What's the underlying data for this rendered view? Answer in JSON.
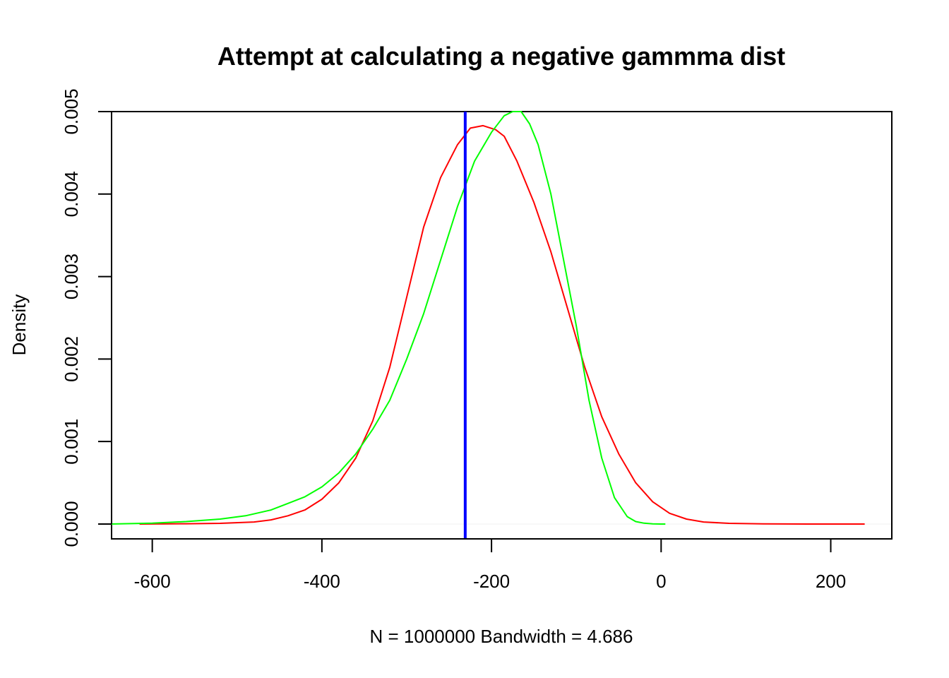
{
  "chart_data": {
    "type": "line",
    "title": "Attempt at calculating a negative gammma dist",
    "xlabel": "N = 1000000   Bandwidth = 4.686",
    "ylabel": "Density",
    "xlim": [
      -648,
      272
    ],
    "ylim": [
      -0.00018,
      0.005
    ],
    "x_ticks": [
      -600,
      -400,
      -200,
      0,
      200
    ],
    "x_tick_labels": [
      "-600",
      "-400",
      "-200",
      "0",
      "200"
    ],
    "y_ticks": [
      0,
      0.001,
      0.002,
      0.003,
      0.004,
      0.005
    ],
    "y_tick_labels": [
      "0.000",
      "0.001",
      "0.002",
      "0.003",
      "0.004",
      "0.005"
    ],
    "grid": false,
    "legend": "none",
    "vline": {
      "x": -231,
      "color": "#0000ff"
    },
    "series": [
      {
        "color": "#ff0000",
        "x": [
          -615,
          -560,
          -520,
          -480,
          -460,
          -440,
          -420,
          -400,
          -380,
          -360,
          -340,
          -320,
          -300,
          -280,
          -260,
          -240,
          -225,
          -210,
          -195,
          -185,
          -170,
          -150,
          -130,
          -110,
          -90,
          -70,
          -50,
          -30,
          -10,
          10,
          30,
          50,
          80,
          120,
          180,
          240
        ],
        "y": [
          0,
          3e-06,
          8e-06,
          2.5e-05,
          5e-05,
          0.0001,
          0.00017,
          0.0003,
          0.0005,
          0.0008,
          0.00125,
          0.0019,
          0.00275,
          0.0036,
          0.0042,
          0.0046,
          0.0048,
          0.00483,
          0.00478,
          0.0047,
          0.0044,
          0.0039,
          0.0033,
          0.0026,
          0.0019,
          0.0013,
          0.00085,
          0.0005,
          0.00027,
          0.00013,
          6e-05,
          2.5e-05,
          8e-06,
          2e-06,
          0,
          0
        ]
      },
      {
        "color": "#00ff00",
        "x": [
          -650,
          -600,
          -560,
          -520,
          -490,
          -460,
          -440,
          -420,
          -400,
          -380,
          -360,
          -340,
          -320,
          -300,
          -280,
          -260,
          -240,
          -220,
          -200,
          -185,
          -175,
          -165,
          -155,
          -145,
          -130,
          -115,
          -100,
          -85,
          -70,
          -55,
          -40,
          -30,
          -20,
          -10,
          0,
          5
        ],
        "y": [
          0,
          1e-05,
          3e-05,
          6e-05,
          0.0001,
          0.00017,
          0.00025,
          0.00033,
          0.00045,
          0.00062,
          0.00085,
          0.00115,
          0.0015,
          0.002,
          0.00255,
          0.0032,
          0.00385,
          0.0044,
          0.00475,
          0.00495,
          0.005,
          0.005,
          0.00485,
          0.0046,
          0.004,
          0.0032,
          0.0024,
          0.0015,
          0.0008,
          0.00032,
          9e-05,
          3e-05,
          1e-05,
          2e-06,
          0,
          0
        ]
      }
    ]
  }
}
